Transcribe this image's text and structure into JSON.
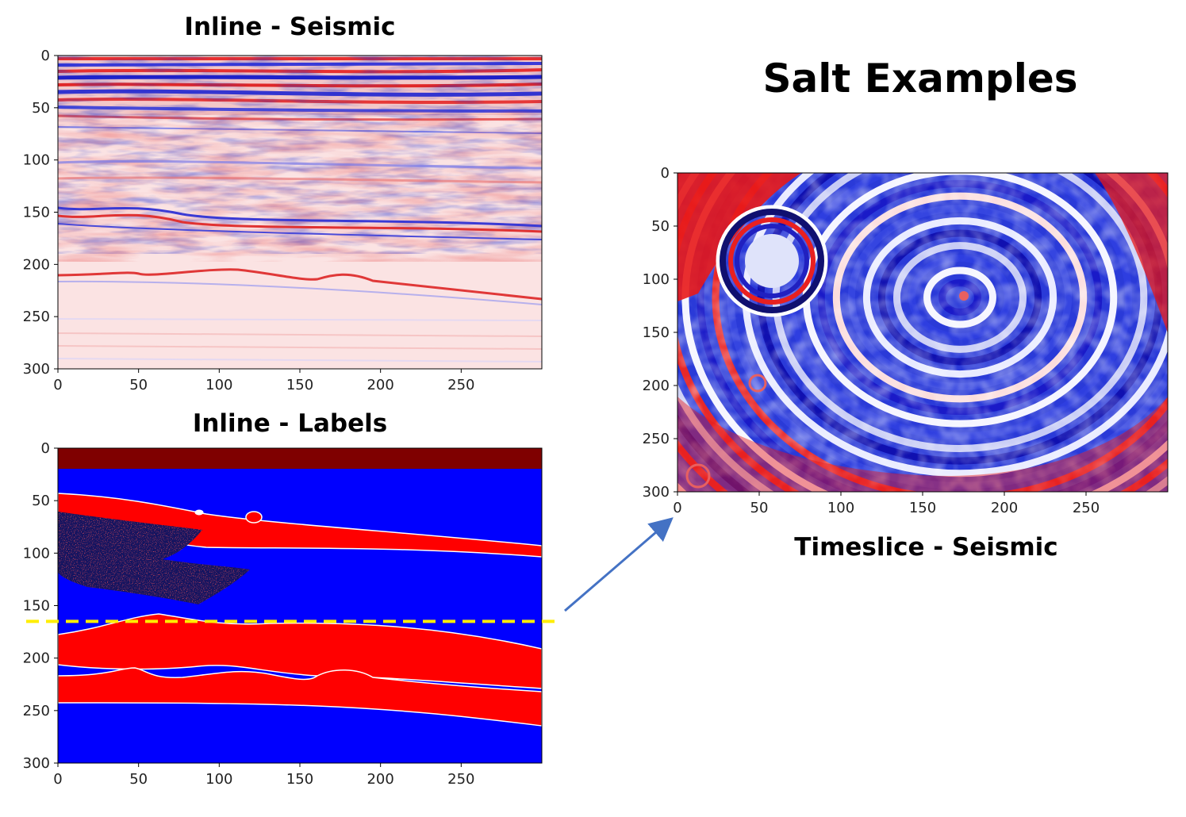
{
  "page": {
    "title": "Salt Examples"
  },
  "panels": [
    {
      "id": "inline_seismic",
      "title": "Inline - Seismic",
      "colormap": "seismic (blue-white-red)",
      "x_ticks": [
        "0",
        "50",
        "100",
        "150",
        "200",
        "250"
      ],
      "y_ticks": [
        "0",
        "50",
        "100",
        "150",
        "200",
        "250",
        "300"
      ],
      "x_range": [
        0,
        300
      ],
      "y_range": [
        300,
        0
      ]
    },
    {
      "id": "inline_labels",
      "title": "Inline - Labels",
      "colormap": "seismic (blue-white-red)",
      "x_ticks": [
        "0",
        "50",
        "100",
        "150",
        "200",
        "250"
      ],
      "y_ticks": [
        "0",
        "50",
        "100",
        "150",
        "200",
        "250",
        "300"
      ],
      "x_range": [
        0,
        300
      ],
      "y_range": [
        300,
        0
      ],
      "slice_marker": {
        "y": 165,
        "style": "dashed",
        "color": "#ffee00"
      }
    },
    {
      "id": "timeslice_seismic",
      "title": "Timeslice - Seismic",
      "colormap": "seismic (blue-white-red)",
      "x_ticks": [
        "0",
        "50",
        "100",
        "150",
        "200",
        "250"
      ],
      "y_ticks": [
        "0",
        "50",
        "100",
        "150",
        "200",
        "250",
        "300"
      ],
      "x_range": [
        0,
        300
      ],
      "y_range": [
        300,
        0
      ]
    }
  ],
  "colors": {
    "red": "#ff0000",
    "blue": "#0000ff",
    "dark_red": "#7f0000",
    "dark_navy": "#10105a",
    "marker_yellow": "#ffee00",
    "arrow": "#4472c4"
  }
}
